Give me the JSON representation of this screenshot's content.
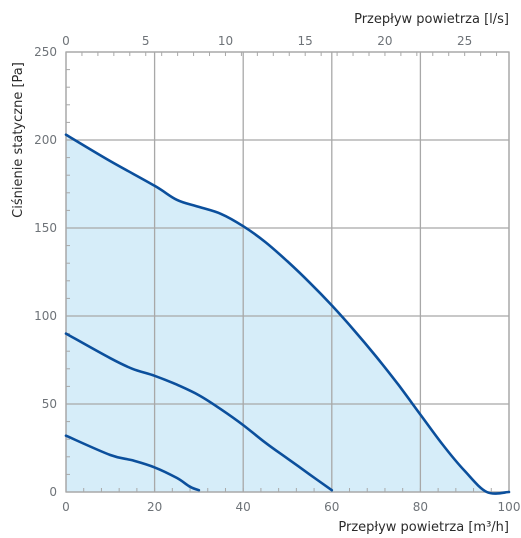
{
  "chart_data": {
    "type": "line",
    "x_bottom": {
      "label": "Przepływ powietrza [m³/h]",
      "range": [
        0,
        100
      ],
      "ticks": [
        0,
        20,
        40,
        60,
        80,
        100
      ]
    },
    "x_top": {
      "label": "Przepływ powietrza [l/s]",
      "range": [
        0,
        27.78
      ],
      "ticks": [
        0,
        5,
        10,
        15,
        20,
        25
      ]
    },
    "y": {
      "label": "Ciśnienie statyczne [Pa]",
      "range": [
        0,
        250
      ],
      "ticks": [
        0,
        50,
        100,
        150,
        200,
        250
      ]
    },
    "grid": true,
    "colors": {
      "line": "#0b4f9c",
      "fill": "#d6edf9",
      "grid": "#a8a8a8"
    },
    "series": [
      {
        "shaded": true,
        "points": [
          [
            0,
            203
          ],
          [
            10,
            188
          ],
          [
            20,
            174
          ],
          [
            25,
            166
          ],
          [
            30,
            162
          ],
          [
            35,
            158
          ],
          [
            40,
            151
          ],
          [
            45,
            142
          ],
          [
            50,
            131
          ],
          [
            55,
            119
          ],
          [
            60,
            106
          ],
          [
            65,
            92
          ],
          [
            70,
            77
          ],
          [
            75,
            61
          ],
          [
            80,
            44
          ],
          [
            85,
            27
          ],
          [
            90,
            12
          ],
          [
            95,
            -2
          ],
          [
            100,
            0
          ]
        ]
      },
      {
        "points": [
          [
            0,
            90
          ],
          [
            10,
            76
          ],
          [
            15,
            70
          ],
          [
            20,
            66
          ],
          [
            25,
            61
          ],
          [
            30,
            55
          ],
          [
            35,
            47
          ],
          [
            40,
            38
          ],
          [
            45,
            28
          ],
          [
            50,
            19
          ],
          [
            55,
            10
          ],
          [
            60,
            1
          ]
        ]
      },
      {
        "points": [
          [
            0,
            32
          ],
          [
            10,
            21
          ],
          [
            15,
            18
          ],
          [
            20,
            14
          ],
          [
            25,
            8
          ],
          [
            28,
            3
          ],
          [
            30,
            1
          ]
        ]
      }
    ]
  }
}
